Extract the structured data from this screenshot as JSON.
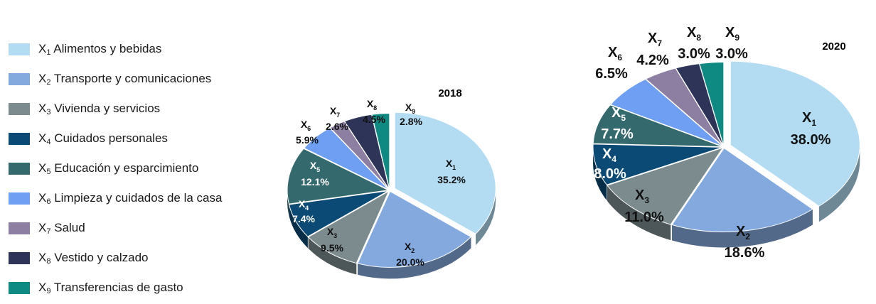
{
  "legend": [
    {
      "code": "X",
      "sub": "1",
      "label": "Alimentos y bebidas",
      "color": "#b3dcf2"
    },
    {
      "code": "X",
      "sub": "2",
      "label": "Transporte y comunicaciones",
      "color": "#84a9df"
    },
    {
      "code": "X",
      "sub": "3",
      "label": "Vivienda y servicios",
      "color": "#7c8b8e"
    },
    {
      "code": "X",
      "sub": "4",
      "label": "Cuidados personales",
      "color": "#0b4a75"
    },
    {
      "code": "X",
      "sub": "5",
      "label": "Educación y esparcimiento",
      "color": "#34696e"
    },
    {
      "code": "X",
      "sub": "6",
      "label": "Limpieza y cuidados de la casa",
      "color": "#6f9ff3"
    },
    {
      "code": "X",
      "sub": "7",
      "label": "Salud",
      "color": "#8c7fa1"
    },
    {
      "code": "X",
      "sub": "8",
      "label": "Vestido y calzado",
      "color": "#2e3458"
    },
    {
      "code": "X",
      "sub": "9",
      "label": "Transferencias de gasto",
      "color": "#0e8a83"
    }
  ],
  "chart_data": [
    {
      "type": "pie",
      "title": "2018",
      "categories": [
        "X1",
        "X2",
        "X3",
        "X4",
        "X5",
        "X6",
        "X7",
        "X8",
        "X9"
      ],
      "values": [
        35.2,
        20.0,
        9.5,
        7.4,
        12.1,
        5.9,
        2.6,
        4.5,
        2.8
      ],
      "value_labels": [
        "35.2%",
        "20.0%",
        "9.5%",
        "7.4%",
        "12.1%",
        "5.9%",
        "2.6%",
        "4.5%",
        "2.8%"
      ]
    },
    {
      "type": "pie",
      "title": "2020",
      "categories": [
        "X1",
        "X2",
        "X3",
        "X4",
        "X5",
        "X6",
        "X7",
        "X8",
        "X9"
      ],
      "values": [
        38.0,
        18.6,
        11.0,
        8.0,
        7.7,
        6.5,
        4.2,
        3.0,
        3.0
      ],
      "value_labels": [
        "38.0%",
        "18.6%",
        "11.0%",
        "8.0%",
        "7.7%",
        "6.5%",
        "4.2%",
        "3.0%",
        "3.0%"
      ]
    }
  ]
}
